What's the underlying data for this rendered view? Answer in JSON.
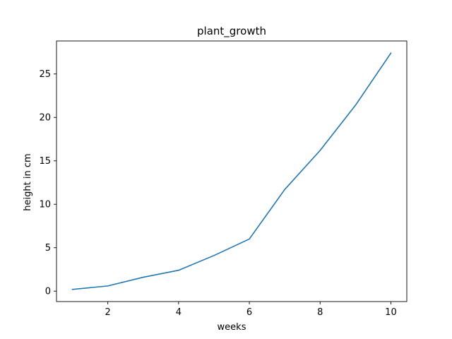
{
  "chart_data": {
    "type": "line",
    "title": "plant_growth",
    "xlabel": "weeks",
    "ylabel": "height in cm",
    "x": [
      1,
      2,
      3,
      4,
      5,
      6,
      7,
      8,
      9,
      10
    ],
    "series": [
      {
        "values": [
          0.2,
          0.6,
          1.6,
          2.4,
          4.1,
          6.0,
          11.7,
          16.2,
          21.4,
          27.4
        ],
        "color": "#1f77b4"
      }
    ],
    "xlim": [
      0.55,
      10.45
    ],
    "ylim": [
      -1.2,
      28.8
    ],
    "xticks": [
      2,
      4,
      6,
      8,
      10
    ],
    "yticks": [
      0,
      5,
      10,
      15,
      20,
      25
    ],
    "grid": false,
    "legend": "none"
  }
}
